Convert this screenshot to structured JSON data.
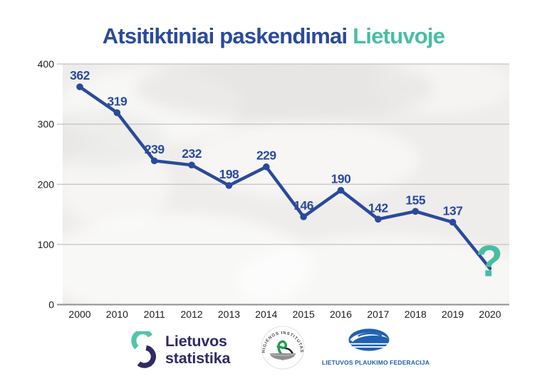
{
  "title": {
    "main": "Atsitiktiniai paskendimai",
    "highlight": "Lietuvoje"
  },
  "chart_data": {
    "type": "line",
    "title": "Atsitiktiniai paskendimai Lietuvoje",
    "categories": [
      "2000",
      "2010",
      "2011",
      "2012",
      "2013",
      "2014",
      "2015",
      "2016",
      "2017",
      "2018",
      "2019",
      "2020"
    ],
    "values": [
      362,
      319,
      239,
      232,
      198,
      229,
      146,
      190,
      142,
      155,
      137,
      null
    ],
    "unknown_point": {
      "category": "2020",
      "label": "?",
      "plot_value_estimate": 60
    },
    "yticks": [
      0,
      100,
      200,
      300,
      400
    ],
    "ylim": [
      0,
      400
    ],
    "xlabel": "",
    "ylabel": "",
    "grid": true,
    "legend": false,
    "marker": "circle"
  },
  "colors": {
    "navy": "#2a4a9b",
    "teal": "#49bda4",
    "axis_text": "#1c1c1c",
    "gridline": "#c3c2c1",
    "axis_line": "#8f8f8f",
    "panel": "#eeedeb",
    "stat_navy": "#2f2a64",
    "stat_teal": "#52c5ab",
    "federation_blue": "#2060ae",
    "institute_green": "#1f9e4e",
    "institute_gray": "#8f8f8f"
  },
  "footer": {
    "statistics": {
      "line1": "Lietuvos",
      "line2": "statistika"
    },
    "institute": {
      "arc_text": "HIGIENOS INSTITUTAS"
    },
    "federation": {
      "caption": "LIETUVOS PLAUKIMO FEDERACIJA"
    }
  }
}
